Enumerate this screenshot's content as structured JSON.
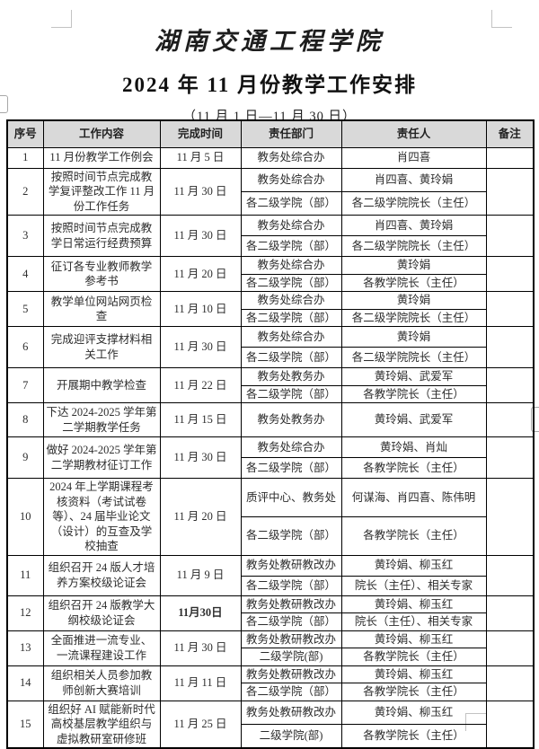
{
  "page": {
    "title": "湖南交通工程学院",
    "subtitle": "2024 年 11 月份教学工作安排",
    "date_range": "（11 月 1 日—11 月 30 日）"
  },
  "colors": {
    "header_bg": "#d9d9d9",
    "border": "#000000",
    "text": "#2d2d2d",
    "crop_mark": "#c3c3c3"
  },
  "table": {
    "headers": [
      "序号",
      "工作内容",
      "完成时间",
      "责任部门",
      "责任人",
      "备注"
    ],
    "rows": [
      {
        "no": "1",
        "content": "11 月份教学工作例会",
        "time": "11 月 5 日",
        "entries": [
          {
            "dept": "教务处综合办",
            "person": "肖四喜"
          }
        ],
        "note": ""
      },
      {
        "no": "2",
        "content": "按照时间节点完成教学复评整改工作 11 月份工作任务",
        "time": "11 月 30 日",
        "entries": [
          {
            "dept": "教务处综合办",
            "person": "肖四喜、黄玲娟"
          },
          {
            "dept": "各二级学院（部）",
            "person": "各二级学院院长（主任）"
          }
        ],
        "note": ""
      },
      {
        "no": "3",
        "content": "按照时间节点完成教学日常运行经费预算",
        "time": "11 月 30 日",
        "entries": [
          {
            "dept": "教务处综合办",
            "person": "肖四喜、黄玲娟"
          },
          {
            "dept": "各二级学院（部）",
            "person": "各二级学院院长（主任）"
          }
        ],
        "note": ""
      },
      {
        "no": "4",
        "content": "征订各专业教师教学参考书",
        "time": "11 月 20 日",
        "entries": [
          {
            "dept": "教务处综合办",
            "person": "黄玲娟"
          },
          {
            "dept": "各二级学院（部）",
            "person": "各教学院长（主任）"
          }
        ],
        "note": ""
      },
      {
        "no": "5",
        "content": "教学单位网站网页检查",
        "time": "11 月 10 日",
        "entries": [
          {
            "dept": "教务处综合办",
            "person": "黄玲娟"
          },
          {
            "dept": "各二级学院（部）",
            "person": "各二级学院院长（主任）"
          }
        ],
        "note": ""
      },
      {
        "no": "6",
        "content": "完成迎评支撑材料相关工作",
        "time": "11 月 30 日",
        "entries": [
          {
            "dept": "教务处综合办",
            "person": "黄玲娟"
          },
          {
            "dept": "各二级学院（部）",
            "person": "各二级学院院长（主任）"
          }
        ],
        "note": ""
      },
      {
        "no": "7",
        "content": "开展期中教学检查",
        "time": "11 月 22 日",
        "entries": [
          {
            "dept": "教务处教务办",
            "person": "黄玲娟、武爱军"
          },
          {
            "dept": "各二级学院（部）",
            "person": "各教学院长（主任）"
          }
        ],
        "note": ""
      },
      {
        "no": "8",
        "content": "下达 2024-2025 学年第二学期教学任务",
        "time": "11 月 15 日",
        "entries": [
          {
            "dept": "教务处教务办",
            "person": "黄玲娟、武爱军"
          }
        ],
        "note": ""
      },
      {
        "no": "9",
        "content": "做好 2024-2025 学年第二学期教材征订工作",
        "time": "11 月 30 日",
        "entries": [
          {
            "dept": "教务处综合办",
            "person": "黄玲娟、肖灿"
          },
          {
            "dept": "各二级学院（部）",
            "person": "各教学院长（主任）"
          }
        ],
        "note": ""
      },
      {
        "no": "10",
        "content": "2024 年上学期课程考核资料（考试试卷等）、24 届毕业论文（设计）的互查及学校抽查",
        "time": "11 月 20 日",
        "entries": [
          {
            "dept": "质评中心、教务处",
            "person": "何谋海、肖四喜、陈伟明"
          },
          {
            "dept": "各二级学院（部）",
            "person": "各教学院长（主任）"
          }
        ],
        "note": ""
      },
      {
        "no": "11",
        "content": "组织召开 24 版人才培养方案校级论证会",
        "time": "11 月 9 日",
        "entries": [
          {
            "dept": "教务处教研教改办",
            "person": "黄玲娟、柳玉红"
          },
          {
            "dept": "各二级学院（部）",
            "person": "院长（主任）、相关专家"
          }
        ],
        "note": ""
      },
      {
        "no": "12",
        "content": "组织召开 24 版教学大纲校级论证会",
        "time": "11月30日",
        "time_bold": true,
        "entries": [
          {
            "dept": "教务处教研教改办",
            "person": "黄玲娟、柳玉红"
          },
          {
            "dept": "各二级学院（部）",
            "person": "院长（主任）、相关专家"
          }
        ],
        "note": ""
      },
      {
        "no": "13",
        "content": "全面推进一流专业、一流课程建设工作",
        "time": "11 月 30 日",
        "entries": [
          {
            "dept": "教务处教研教改办",
            "person": "黄玲娟、柳玉红"
          },
          {
            "dept": "二级学院(部)",
            "person": "各教学院长（主任）"
          }
        ],
        "note": ""
      },
      {
        "no": "14",
        "content": "组织相关人员参加教师创新大赛培训",
        "time": "11 月 11 日",
        "entries": [
          {
            "dept": "教务处教研教改办",
            "person": "黄玲娟、柳玉红"
          },
          {
            "dept": "各二级学院（部）",
            "person": "各教学院长（主任）"
          }
        ],
        "note": ""
      },
      {
        "no": "15",
        "content": "组织好 AI 赋能新时代高校基层教学组织与虚拟教研室研修班",
        "time": "11 月 25 日",
        "entries": [
          {
            "dept": "教务处教研教改办",
            "person": "黄玲娟、柳玉红"
          },
          {
            "dept": "二级学院(部)",
            "person": "各教学院长（主任）"
          }
        ],
        "note": ""
      }
    ]
  }
}
